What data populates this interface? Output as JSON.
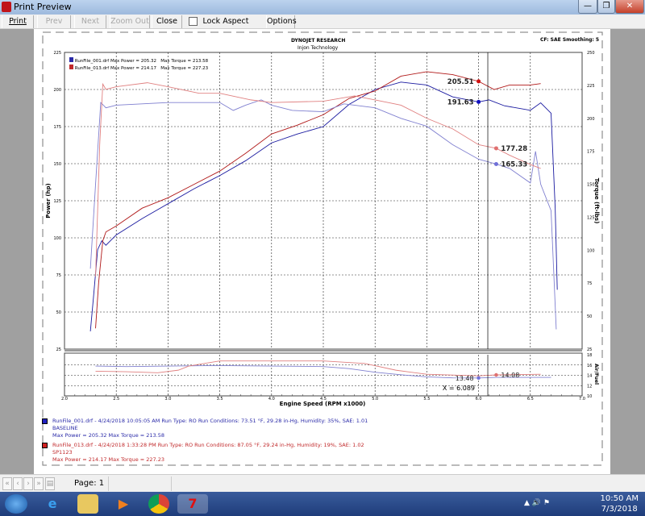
{
  "window": {
    "title": "Print Preview",
    "minimize": "—",
    "maximize": "❐",
    "close": "✕"
  },
  "toolbar": {
    "print": "Print",
    "prev": "Prev",
    "next": "Next",
    "zoom_out": "Zoom Out",
    "close": "Close",
    "lock_aspect": "Lock Aspect Ratio",
    "lock_checked": false,
    "options": "Options"
  },
  "report": {
    "header1": "DYNOJET RESEARCH",
    "header2": "Injon Technology",
    "cf": "CF: SAE  Smoothing: 5",
    "legend": [
      {
        "file": "RunFile_001.drf",
        "max_power": "Max Power = 205.32",
        "max_torque": "Max Torque = 213.58",
        "color": "#2a2aa8"
      },
      {
        "file": "RunFile_013.drf",
        "max_power": "Max Power = 214.17",
        "max_torque": "Max Torque = 227.23",
        "color": "#c0282a"
      }
    ],
    "runs": [
      {
        "line1": "RunFile_001.drf - 4/24/2018 10:05:05 AM  Run Type: RO  Run Conditions: 73.51 °F, 29.28 in-Hg,  Humidity:  35%, SAE: 1.01",
        "line2": "BASELINE",
        "line3": "Max Power = 205.32  Max Torque = 213.58",
        "color": "#2a2aa8"
      },
      {
        "line1": "RunFile_013.drf - 4/24/2018 1:33:28 PM  Run Type: RO  Run Conditions: 87.05 °F, 29.24 in-Hg,  Humidity:  19%, SAE: 1.02",
        "line2": "SP1123",
        "line3": "Max Power = 214.17  Max Torque = 227.23",
        "color": "#c0282a"
      }
    ]
  },
  "chart_data": [
    {
      "type": "line",
      "xlabel": "Engine Speed (RPM x1000)",
      "ylabel": "Power (hp)",
      "y2label": "Torque (ft-lbs)",
      "xlim": [
        2.0,
        7.0
      ],
      "ylim": [
        25,
        225
      ],
      "y2lim": [
        25,
        250
      ],
      "grid": true,
      "legend": "top-left",
      "xticks": [
        "2.0",
        "2.5",
        "3.0",
        "3.5",
        "4.0",
        "4.5",
        "5.0",
        "5.5",
        "6.0",
        "6.5",
        "7.0"
      ],
      "yticks": [
        "25",
        "50",
        "75",
        "100",
        "125",
        "150",
        "175",
        "200",
        "225"
      ],
      "y2ticks": [
        "25",
        "50",
        "75",
        "100",
        "125",
        "150",
        "175",
        "200",
        "225",
        "250"
      ],
      "series": [
        {
          "name": "RunFile_001.drf",
          "quantity": "power",
          "color": "#1a1aa0",
          "x": [
            2.25,
            2.28,
            2.32,
            2.36,
            2.4,
            2.5,
            2.75,
            3.0,
            3.25,
            3.5,
            3.75,
            4.0,
            4.25,
            4.5,
            4.75,
            5.0,
            5.25,
            5.5,
            5.75,
            6.0,
            6.1,
            6.25,
            6.5,
            6.6,
            6.7,
            6.74,
            6.76
          ],
          "y": [
            37,
            60,
            92,
            98,
            95,
            102,
            113,
            123,
            133,
            142,
            152,
            164,
            170,
            175,
            190,
            200,
            205,
            203,
            195,
            191.63,
            193,
            189,
            186,
            191,
            184,
            120,
            65
          ]
        },
        {
          "name": "RunFile_013.drf",
          "quantity": "power",
          "color": "#b01818",
          "x": [
            2.3,
            2.33,
            2.37,
            2.4,
            2.5,
            2.75,
            3.0,
            3.25,
            3.5,
            3.75,
            4.0,
            4.25,
            4.5,
            4.75,
            5.0,
            5.25,
            5.5,
            5.75,
            6.0,
            6.15,
            6.3,
            6.5,
            6.6
          ],
          "y": [
            39,
            70,
            98,
            104,
            108,
            120,
            127,
            136,
            145,
            157,
            170,
            176,
            183,
            194,
            199,
            209,
            212,
            210,
            205.51,
            200,
            203,
            203,
            204
          ]
        },
        {
          "name": "RunFile_001.drf",
          "quantity": "torque",
          "color": "#8080d0",
          "x": [
            2.25,
            2.3,
            2.35,
            2.4,
            2.5,
            2.75,
            3.0,
            3.25,
            3.5,
            3.63,
            3.75,
            3.9,
            4.0,
            4.2,
            4.5,
            4.7,
            5.0,
            5.25,
            5.5,
            5.75,
            6.0,
            6.17,
            6.3,
            6.5,
            6.55,
            6.6,
            6.7,
            6.75
          ],
          "y": [
            86,
            150,
            212,
            208,
            210,
            211,
            212,
            212,
            212,
            206,
            210,
            214,
            210,
            206,
            205,
            211,
            208,
            200,
            194,
            180,
            169,
            165.33,
            162,
            151,
            175,
            150,
            130,
            40
          ]
        },
        {
          "name": "RunFile_013.drf",
          "quantity": "torque",
          "color": "#e08080",
          "x": [
            2.3,
            2.34,
            2.37,
            2.4,
            2.5,
            2.8,
            3.0,
            3.3,
            3.5,
            3.8,
            4.0,
            4.5,
            4.8,
            5.0,
            5.25,
            5.5,
            5.75,
            6.0,
            6.17,
            6.3,
            6.5,
            6.6
          ],
          "y": [
            80,
            180,
            226,
            222,
            224,
            227,
            224,
            219,
            219,
            214,
            212,
            213,
            217,
            214,
            210,
            200,
            192,
            180,
            177.28,
            172,
            165,
            162
          ]
        }
      ],
      "annotations": [
        {
          "text": "205.51",
          "x": 6.0,
          "y": 205.51,
          "color": "#d01010",
          "axis": "power"
        },
        {
          "text": "191.63",
          "x": 6.0,
          "y": 191.63,
          "color": "#1010c0",
          "axis": "power"
        },
        {
          "text": "177.28",
          "x": 6.17,
          "y": 177.28,
          "color": "#e07070",
          "axis": "torque"
        },
        {
          "text": "165.33",
          "x": 6.17,
          "y": 165.33,
          "color": "#7070d8",
          "axis": "torque"
        }
      ],
      "cursor_x": 6.089
    },
    {
      "type": "line",
      "ylabel": "Air/Fuel",
      "xlim": [
        2.0,
        7.0
      ],
      "ylim": [
        10,
        18
      ],
      "yticks": [
        "10",
        "12",
        "14",
        "16",
        "18"
      ],
      "series": [
        {
          "name": "RunFile_001.drf",
          "color": "#8080d0",
          "x": [
            2.3,
            2.6,
            3.0,
            3.5,
            4.0,
            4.5,
            4.75,
            5.0,
            5.25,
            5.5,
            5.75,
            6.0,
            6.17,
            6.5,
            6.7
          ],
          "y": [
            15.8,
            15.7,
            15.8,
            15.9,
            15.8,
            15.7,
            15.3,
            14.6,
            14.1,
            13.7,
            13.5,
            13.48,
            13.6,
            13.6,
            13.6
          ]
        },
        {
          "name": "RunFile_013.drf",
          "color": "#e08080",
          "x": [
            2.3,
            2.6,
            2.9,
            3.1,
            3.2,
            3.5,
            4.0,
            4.5,
            4.9,
            5.2,
            5.5,
            6.0,
            6.17,
            6.6
          ],
          "y": [
            14.8,
            14.7,
            14.5,
            15.0,
            15.8,
            16.8,
            16.8,
            16.8,
            16.3,
            15.0,
            14.2,
            13.9,
            14.08,
            14.2
          ]
        }
      ],
      "annotations": [
        {
          "text": "13.48",
          "x": 6.0,
          "y": 13.48,
          "color": "#7070d8"
        },
        {
          "text": "14.08",
          "x": 6.17,
          "y": 14.08,
          "color": "#e07070"
        }
      ],
      "cursor_label": "X = 6.089"
    }
  ],
  "statusbar": {
    "first": "«",
    "prev": "‹",
    "next": "›",
    "last": "»",
    "page": "Page: 1"
  },
  "taskbar": {
    "time": "10:50 AM",
    "date": "7/3/2018",
    "tray": "▲ 🔊 ⚑"
  }
}
